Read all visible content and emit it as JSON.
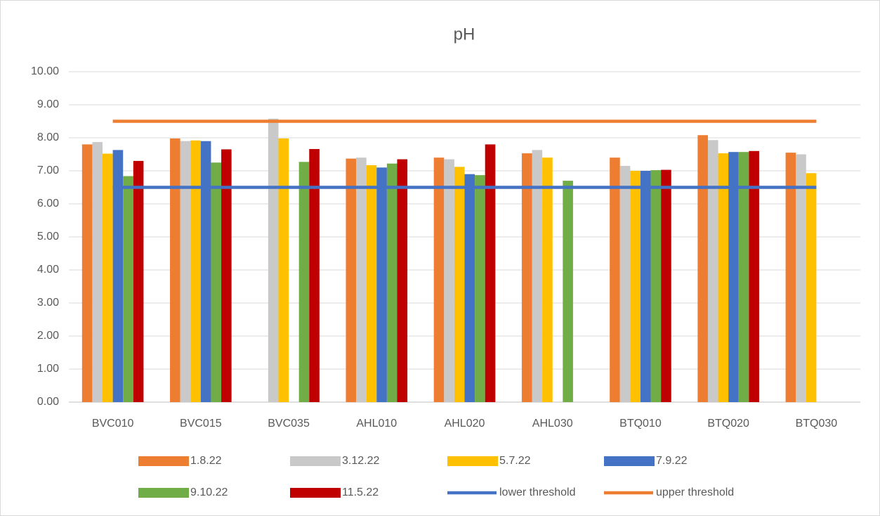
{
  "chart_data": {
    "type": "bar",
    "title": "pH",
    "categories": [
      "BVC010",
      "BVC015",
      "BVC035",
      "AHL010",
      "AHL020",
      "AHL030",
      "BTQ010",
      "BTQ020",
      "BTQ030"
    ],
    "series": [
      {
        "name": "1.8.22",
        "color": "#ED7D31",
        "values": [
          7.8,
          7.98,
          null,
          7.37,
          7.4,
          7.53,
          7.4,
          8.08,
          7.55
        ]
      },
      {
        "name": "3.12.22",
        "color": "#C9C9C9",
        "values": [
          7.87,
          7.9,
          8.58,
          7.4,
          7.35,
          7.63,
          7.15,
          7.93,
          7.5
        ]
      },
      {
        "name": "5.7.22",
        "color": "#FFC000",
        "values": [
          7.52,
          7.92,
          7.98,
          7.17,
          7.12,
          7.4,
          7.0,
          7.53,
          6.93
        ]
      },
      {
        "name": "7.9.22",
        "color": "#4472C4",
        "values": [
          7.63,
          7.9,
          null,
          7.1,
          6.9,
          null,
          7.0,
          7.57,
          null
        ]
      },
      {
        "name": "9.10.22",
        "color": "#70AD47",
        "values": [
          6.84,
          7.25,
          7.27,
          7.22,
          6.87,
          6.7,
          7.02,
          7.57,
          null
        ]
      },
      {
        "name": "11.5.22",
        "color": "#C00000",
        "values": [
          7.3,
          7.65,
          7.66,
          7.35,
          7.8,
          null,
          7.03,
          7.6,
          null
        ]
      },
      {
        "name": "lower threshold",
        "type": "line",
        "color": "#4472C4",
        "values": [
          6.5,
          6.5,
          6.5,
          6.5,
          6.5,
          6.5,
          6.5,
          6.5,
          6.5
        ]
      },
      {
        "name": "upper threshold",
        "type": "line",
        "color": "#ED7D31",
        "values": [
          8.5,
          8.5,
          8.5,
          8.5,
          8.5,
          8.5,
          8.5,
          8.5,
          8.5
        ]
      }
    ],
    "ylim": [
      0,
      10
    ],
    "yticks": [
      {
        "value": 0,
        "label": "0.00"
      },
      {
        "value": 1,
        "label": "1.00"
      },
      {
        "value": 2,
        "label": "2.00"
      },
      {
        "value": 3,
        "label": "3.00"
      },
      {
        "value": 4,
        "label": "4.00"
      },
      {
        "value": 5,
        "label": "5.00"
      },
      {
        "value": 6,
        "label": "6.00"
      },
      {
        "value": 7,
        "label": "7.00"
      },
      {
        "value": 8,
        "label": "8.00"
      },
      {
        "value": 9,
        "label": "9.00"
      },
      {
        "value": 10,
        "label": "10.00"
      }
    ],
    "grid": true,
    "legend": "bottom"
  }
}
